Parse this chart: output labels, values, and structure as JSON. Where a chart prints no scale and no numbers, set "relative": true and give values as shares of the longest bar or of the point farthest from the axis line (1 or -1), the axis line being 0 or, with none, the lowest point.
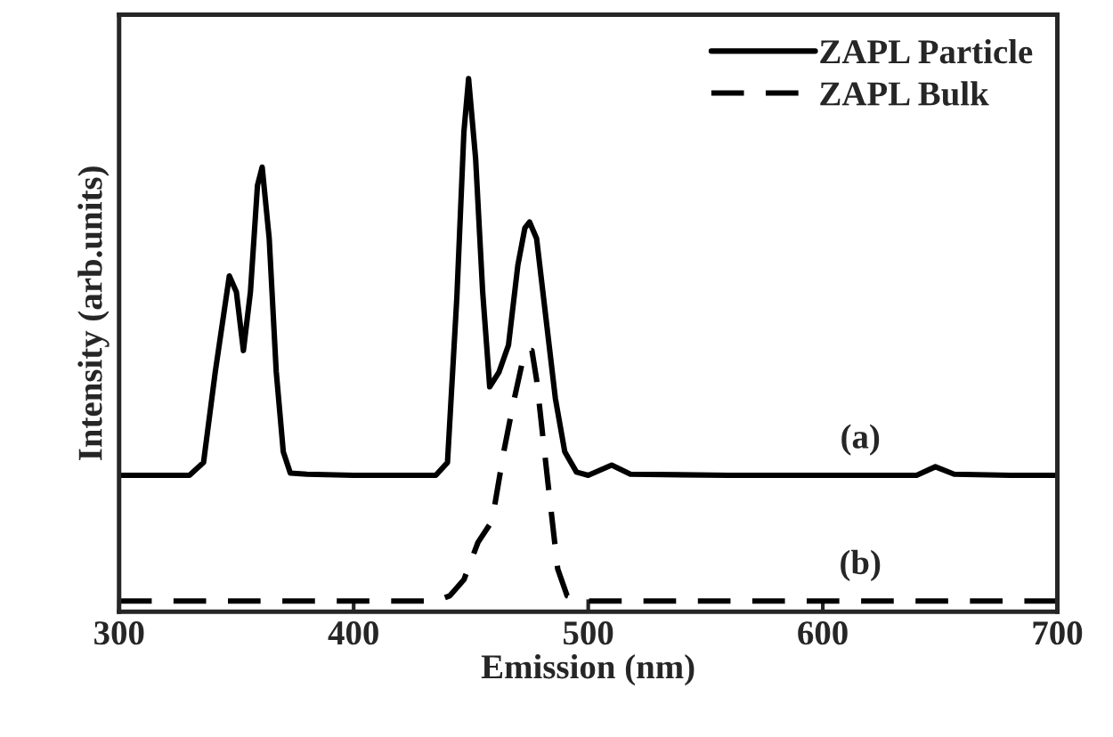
{
  "chart_data": {
    "type": "line",
    "relative": true,
    "xlabel": "Emission (nm)",
    "ylabel": "Intensity (arb.units)",
    "xlim": [
      300,
      700
    ],
    "xticks": [
      300,
      400,
      500,
      600,
      700
    ],
    "tick_labels": "x",
    "grid": false,
    "legend": "top right",
    "annotations": [
      "(a)",
      "(b)"
    ],
    "series": [
      {
        "name": "ZAPL Particle",
        "color": "#000000",
        "line_style": "solid",
        "x": [
          300,
          330,
          336,
          341,
          347,
          350,
          353,
          356,
          359,
          361,
          364,
          367,
          370,
          373,
          380,
          400,
          435,
          440,
          444,
          447,
          449,
          452,
          455,
          458,
          462,
          466,
          470,
          473,
          475,
          478,
          482,
          486,
          490,
          495,
          500,
          510,
          518,
          560,
          640,
          648,
          656,
          680,
          700
        ],
        "values": [
          0.256,
          0.256,
          0.28,
          0.45,
          0.63,
          0.6,
          0.49,
          0.6,
          0.8,
          0.834,
          0.7,
          0.45,
          0.3,
          0.26,
          0.258,
          0.256,
          0.256,
          0.28,
          0.59,
          0.9,
          1.0,
          0.85,
          0.6,
          0.422,
          0.45,
          0.5,
          0.65,
          0.72,
          0.731,
          0.7,
          0.55,
          0.4,
          0.3,
          0.262,
          0.256,
          0.275,
          0.258,
          0.256,
          0.256,
          0.272,
          0.258,
          0.256,
          0.256
        ]
      },
      {
        "name": "ZAPL Bulk",
        "color": "#000000",
        "line_style": "dashed",
        "x": [
          300,
          435,
          441,
          447,
          453,
          459,
          464,
          468,
          473,
          476,
          478,
          483,
          487,
          491,
          497,
          700
        ],
        "values": [
          0.02,
          0.02,
          0.03,
          0.06,
          0.13,
          0.17,
          0.3,
          0.39,
          0.49,
          0.49,
          0.435,
          0.235,
          0.08,
          0.03,
          0.02,
          0.02
        ]
      }
    ]
  }
}
